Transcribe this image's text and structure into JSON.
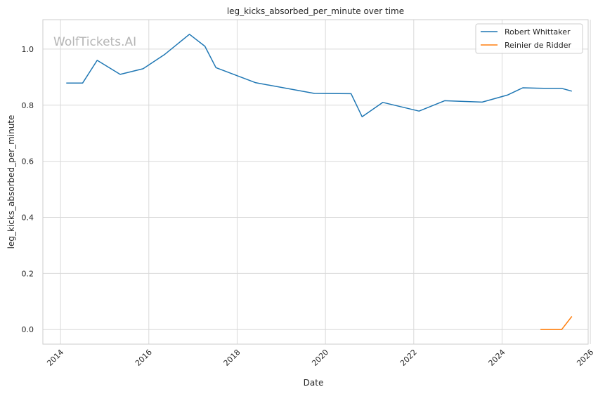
{
  "chart_data": {
    "type": "line",
    "title": "leg_kicks_absorbed_per_minute over time",
    "xlabel": "Date",
    "ylabel": "leg_kicks_absorbed_per_minute",
    "watermark": "WolfTickets.AI",
    "xlim": [
      2013.6,
      2025.95
    ],
    "ylim": [
      -0.052,
      1.105
    ],
    "x_ticks": [
      2014,
      2016,
      2018,
      2020,
      2022,
      2024,
      2026
    ],
    "x_tick_labels": [
      "2014",
      "2016",
      "2018",
      "2020",
      "2022",
      "2024",
      "2026"
    ],
    "y_ticks": [
      0.0,
      0.2,
      0.4,
      0.6,
      0.8,
      1.0
    ],
    "y_tick_labels": [
      "0.0",
      "0.2",
      "0.4",
      "0.6",
      "0.8",
      "1.0"
    ],
    "grid": true,
    "legend_position": "top-right",
    "series": [
      {
        "name": "Robert Whittaker",
        "color": "#1f77b4",
        "x": [
          2014.13,
          2014.5,
          2014.83,
          2015.35,
          2015.87,
          2016.35,
          2016.92,
          2017.27,
          2017.52,
          2018.42,
          2019.75,
          2020.58,
          2020.83,
          2021.3,
          2022.12,
          2022.7,
          2023.55,
          2024.12,
          2024.47,
          2024.95,
          2025.35,
          2025.58
        ],
        "y": [
          0.879,
          0.879,
          0.96,
          0.91,
          0.93,
          0.98,
          1.053,
          1.01,
          0.934,
          0.88,
          0.842,
          0.841,
          0.759,
          0.81,
          0.779,
          0.816,
          0.811,
          0.836,
          0.862,
          0.86,
          0.86,
          0.85
        ]
      },
      {
        "name": "Reinier de Ridder",
        "color": "#ff7f0e",
        "x": [
          2024.87,
          2025.35,
          2025.58
        ],
        "y": [
          0.0,
          0.0,
          0.047
        ]
      }
    ]
  }
}
